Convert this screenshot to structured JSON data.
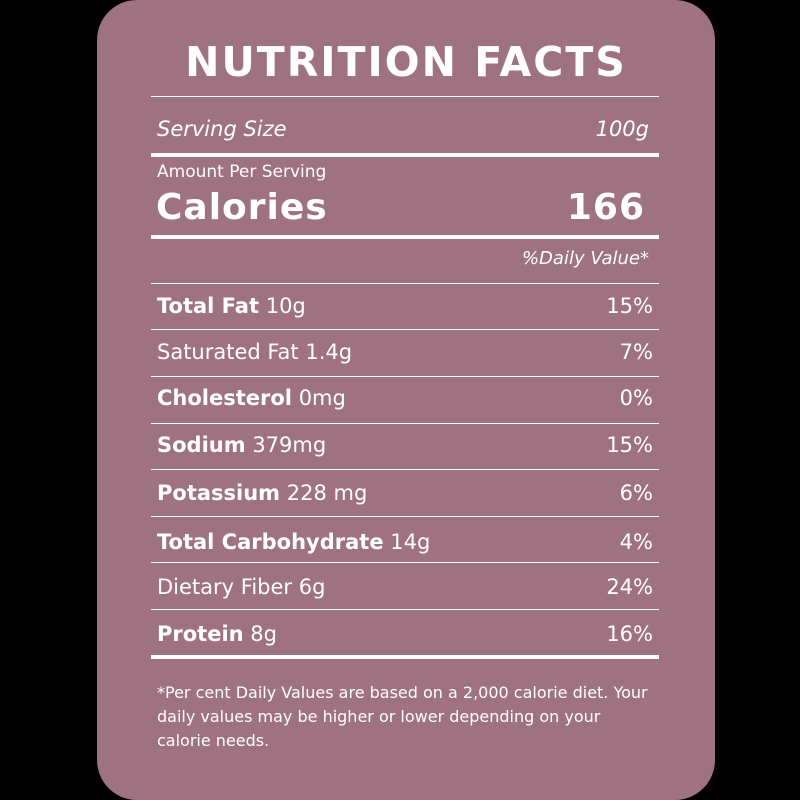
{
  "label": {
    "title": "NUTRITION FACTS",
    "serving_size_label": "Serving Size",
    "serving_size_value": "100g",
    "amount_per_serving": "Amount Per Serving",
    "calories_label": "Calories",
    "calories_value": "166",
    "daily_value_header": "%Daily Value*",
    "nutrients": [
      {
        "name": "Total Fat",
        "amount": "10g",
        "dv": "15%"
      },
      {
        "name": "Saturated Fat",
        "amount": "1.4g",
        "dv": "7%"
      },
      {
        "name": "Cholesterol",
        "amount": "0mg",
        "dv": "0%"
      },
      {
        "name": "Sodium",
        "amount": "379mg",
        "dv": "15%"
      },
      {
        "name": "Potassium",
        "amount": "228 mg",
        "dv": "6%"
      },
      {
        "name": "Total Carbohydrate",
        "amount": "14g",
        "dv": "4%"
      },
      {
        "name": "Dietary Fiber",
        "amount": "6g",
        "dv": "24%"
      },
      {
        "name": "Protein",
        "amount": "8g",
        "dv": "16%"
      }
    ],
    "footnote": "*Per cent Daily Values are based on a 2,000 calorie diet. Your daily values may be higher or lower depending on your calorie needs."
  },
  "colors": {
    "background": "#000000",
    "card": "#9f7282",
    "text": "#ffffff"
  }
}
